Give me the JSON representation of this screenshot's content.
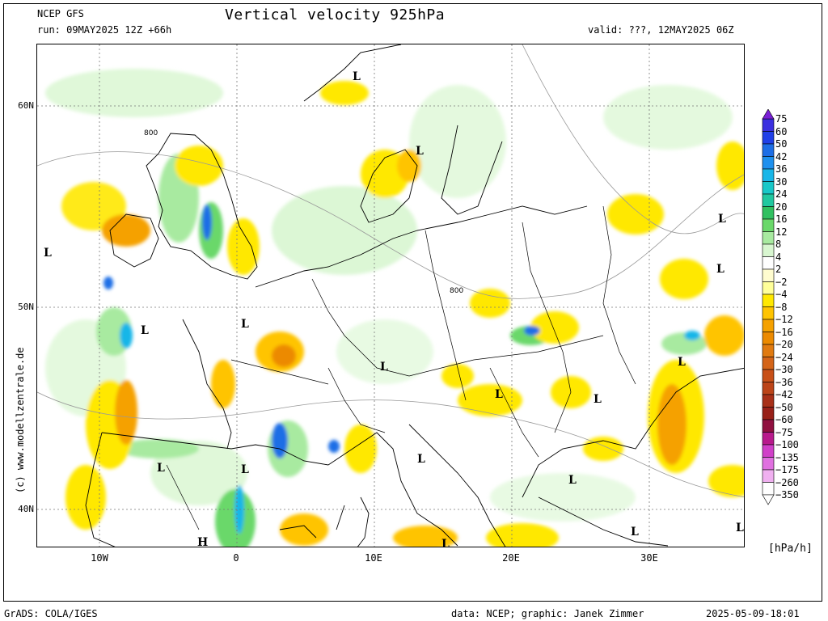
{
  "header": {
    "model": "NCEP GFS",
    "run": "run: 09MAY2025 12Z +66h",
    "title": "Vertical velocity 925hPa",
    "valid": "valid: ???, 12MAY2025 06Z"
  },
  "map": {
    "lat_labels": [
      "60N",
      "50N",
      "40N"
    ],
    "lon_labels": [
      "10W",
      "0",
      "10E",
      "20E",
      "30E"
    ],
    "contour_labels": [
      "800",
      "800"
    ],
    "pressure_centers": [
      "L",
      "L",
      "L",
      "L",
      "L",
      "L",
      "L",
      "L",
      "L",
      "L",
      "L",
      "L",
      "L",
      "L",
      "L",
      "H",
      "L",
      "L",
      "L"
    ],
    "copyright": "(c) www.modellzentrale.de"
  },
  "legend": {
    "units": "[hPa/h]",
    "levels": [
      "75",
      "60",
      "50",
      "42",
      "36",
      "30",
      "24",
      "20",
      "16",
      "12",
      "8",
      "4",
      "2",
      "−2",
      "−4",
      "−8",
      "−12",
      "−16",
      "−20",
      "−24",
      "−30",
      "−36",
      "−42",
      "−50",
      "−60",
      "−75",
      "−100",
      "−135",
      "−175",
      "−260",
      "−350"
    ],
    "colors": [
      "#7a1fd6",
      "#3b2fe0",
      "#2040e8",
      "#1d6ee6",
      "#1e90ee",
      "#18b6e8",
      "#18c8c8",
      "#20c8a0",
      "#30c060",
      "#6ad86a",
      "#a8eaa0",
      "#d8f6d0",
      "#ffffff",
      "#fffccf",
      "#ffff99",
      "#ffe800",
      "#ffc400",
      "#f5a100",
      "#ec8a00",
      "#e07a10",
      "#d46418",
      "#c85018",
      "#bc4418",
      "#a83018",
      "#982018",
      "#901040",
      "#b81a8c",
      "#d040c8",
      "#e070e0",
      "#f0b0f0",
      "#ffffff"
    ]
  },
  "footer": {
    "left": "GrADS: COLA/IGES",
    "middle": "data: NCEP; graphic: Janek Zimmer",
    "right": "2025-05-09-18:01"
  }
}
